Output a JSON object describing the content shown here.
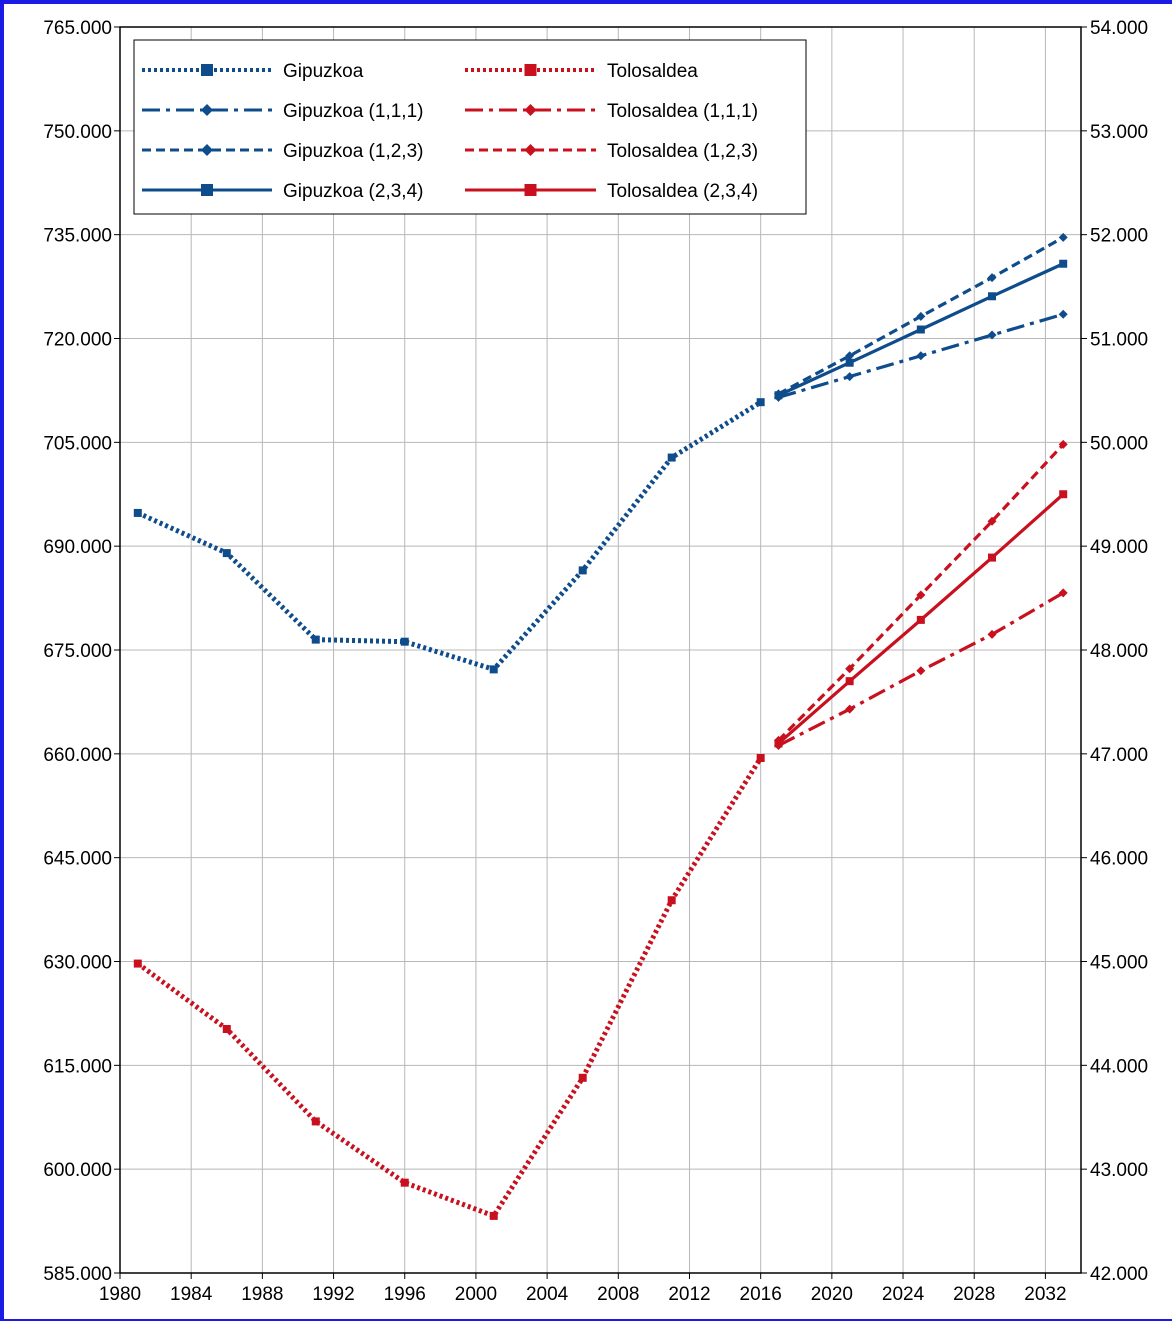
{
  "chart_data": {
    "type": "line",
    "title": "",
    "xlabel": "",
    "ylabel": "",
    "legend_position": "top-left",
    "grid": true,
    "x_ticks": [
      1980,
      1984,
      1988,
      1992,
      1996,
      2000,
      2004,
      2008,
      2012,
      2016,
      2020,
      2024,
      2028,
      2032
    ],
    "xlim": [
      1980,
      2034
    ],
    "y_left": {
      "range": [
        585000,
        765000
      ],
      "ticks": [
        "585.000",
        "600.000",
        "615.000",
        "630.000",
        "645.000",
        "660.000",
        "675.000",
        "690.000",
        "705.000",
        "720.000",
        "735.000",
        "750.000",
        "765.000"
      ]
    },
    "y_right": {
      "range": [
        42000,
        54000
      ],
      "ticks": [
        "42.000",
        "43.000",
        "44.000",
        "45.000",
        "46.000",
        "47.000",
        "48.000",
        "49.000",
        "50.000",
        "51.000",
        "52.000",
        "53.000",
        "54.000"
      ]
    },
    "colors": {
      "gipuzkoa": "#0f4c8c",
      "tolosaldea": "#c8101e"
    },
    "series": [
      {
        "name": "Gipuzkoa",
        "axis": "left",
        "color": "#0f4c8c",
        "dash": "dot",
        "marker": "square",
        "x": [
          1981,
          1986,
          1991,
          1996,
          2001,
          2006,
          2011,
          2016
        ],
        "y": [
          694800,
          689000,
          676500,
          676200,
          672200,
          686500,
          702800,
          710800
        ]
      },
      {
        "name": "Gipuzkoa (1,1,1)",
        "axis": "left",
        "color": "#0f4c8c",
        "dash": "dashdot",
        "marker": "diamond",
        "x": [
          2017,
          2021,
          2025,
          2029,
          2033
        ],
        "y": [
          711500,
          714500,
          717500,
          720500,
          723500
        ]
      },
      {
        "name": "Gipuzkoa (1,2,3)",
        "axis": "left",
        "color": "#0f4c8c",
        "dash": "dash",
        "marker": "diamond",
        "x": [
          2017,
          2021,
          2025,
          2029,
          2033
        ],
        "y": [
          712000,
          717500,
          723200,
          728800,
          734600
        ]
      },
      {
        "name": "Gipuzkoa (2,3,4)",
        "axis": "left",
        "color": "#0f4c8c",
        "dash": "solid",
        "marker": "square",
        "x": [
          2017,
          2021,
          2025,
          2029,
          2033
        ],
        "y": [
          711800,
          716500,
          721300,
          726100,
          730800
        ]
      },
      {
        "name": "Tolosaldea",
        "axis": "right",
        "color": "#c8101e",
        "dash": "dot",
        "marker": "square",
        "x": [
          1981,
          1986,
          1991,
          1996,
          2001,
          2006,
          2011,
          2016
        ],
        "y": [
          44980,
          44350,
          43460,
          42870,
          42550,
          43880,
          45590,
          46960
        ]
      },
      {
        "name": "Tolosaldea (1,1,1)",
        "axis": "right",
        "color": "#c8101e",
        "dash": "dashdot",
        "marker": "diamond",
        "x": [
          2017,
          2021,
          2025,
          2029,
          2033
        ],
        "y": [
          47080,
          47430,
          47800,
          48150,
          48550
        ]
      },
      {
        "name": "Tolosaldea (1,2,3)",
        "axis": "right",
        "color": "#c8101e",
        "dash": "dash",
        "marker": "diamond",
        "x": [
          2017,
          2021,
          2025,
          2029,
          2033
        ],
        "y": [
          47130,
          47820,
          48530,
          49240,
          49980
        ]
      },
      {
        "name": "Tolosaldea (2,3,4)",
        "axis": "right",
        "color": "#c8101e",
        "dash": "solid",
        "marker": "square",
        "x": [
          2017,
          2021,
          2025,
          2029,
          2033
        ],
        "y": [
          47100,
          47700,
          48290,
          48890,
          49500
        ]
      }
    ]
  }
}
